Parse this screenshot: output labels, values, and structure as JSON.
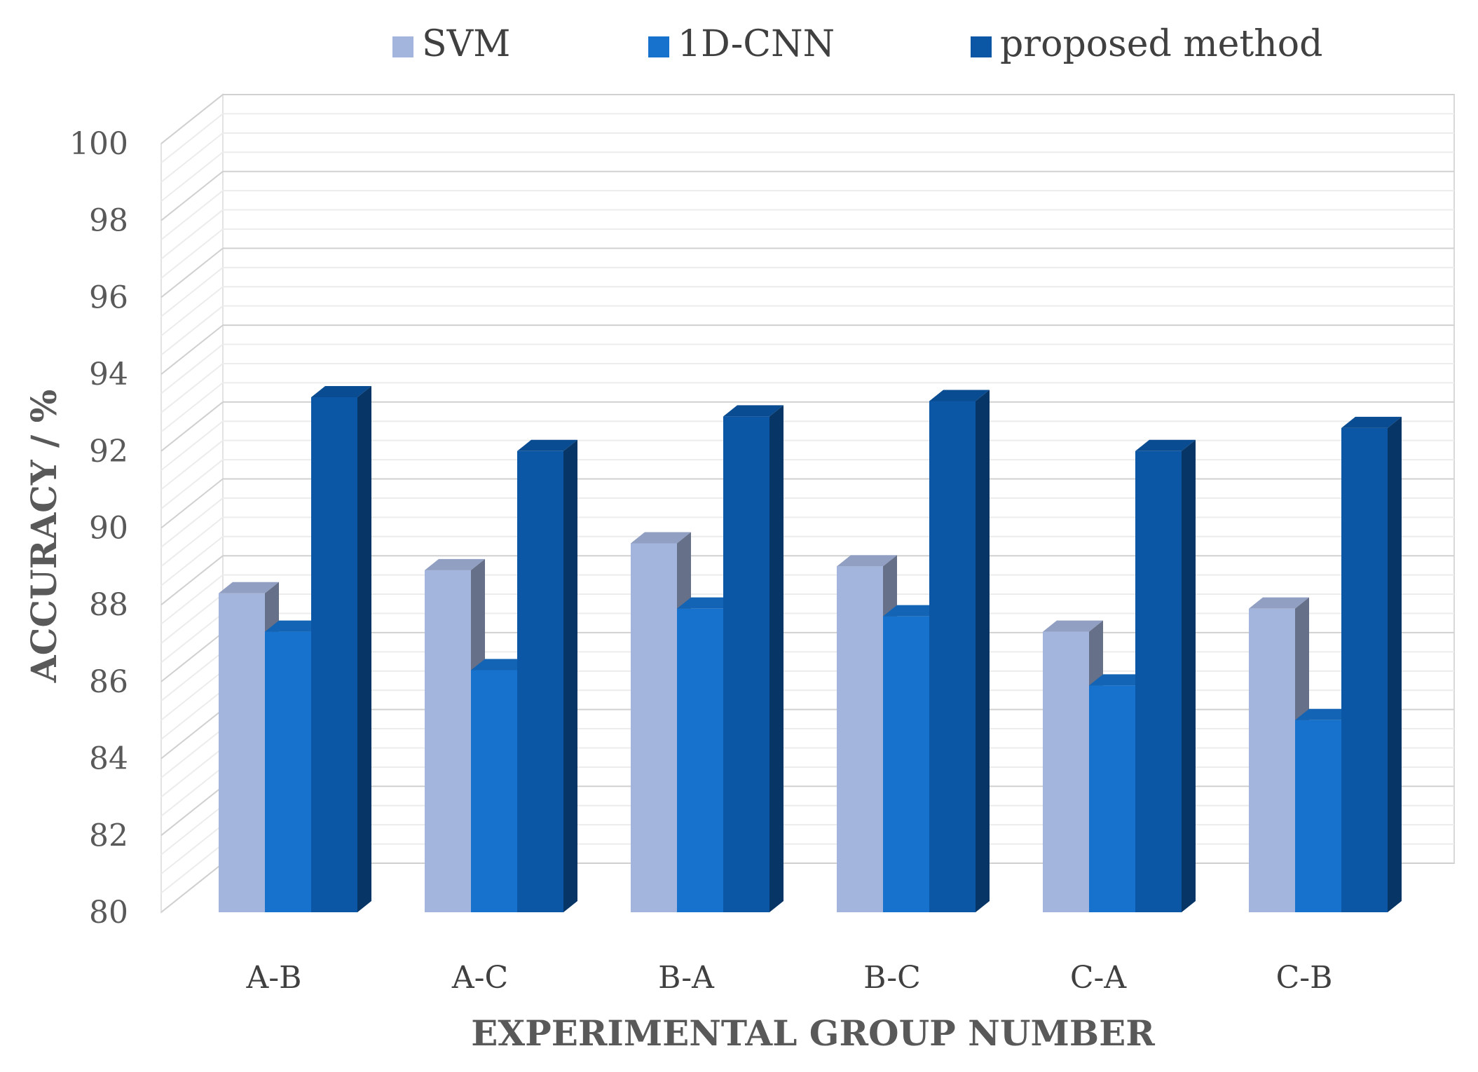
{
  "chart_data": {
    "type": "bar",
    "title": "",
    "xlabel": "EXPERIMENTAL GROUP NUMBER",
    "ylabel": "ACCURACY / %",
    "categories": [
      "A-B",
      "A-C",
      "B-A",
      "B-C",
      "C-A",
      "C-B"
    ],
    "ylim": [
      80,
      100
    ],
    "yticks": [
      80,
      82,
      84,
      86,
      88,
      90,
      92,
      94,
      96,
      98,
      100
    ],
    "grid": true,
    "legend_position": "top",
    "style": "3d-clustered-column",
    "series": [
      {
        "name": "SVM",
        "color": "#a4b5dd",
        "values": [
          88.3,
          88.9,
          89.6,
          89.0,
          87.3,
          87.9
        ]
      },
      {
        "name": "1D-CNN",
        "color": "#1672cc",
        "values": [
          87.3,
          86.3,
          87.9,
          87.7,
          85.9,
          85.0
        ]
      },
      {
        "name": "proposed method",
        "color": "#0b56a5",
        "values": [
          93.4,
          92.0,
          92.9,
          93.3,
          92.0,
          92.6
        ]
      }
    ]
  }
}
